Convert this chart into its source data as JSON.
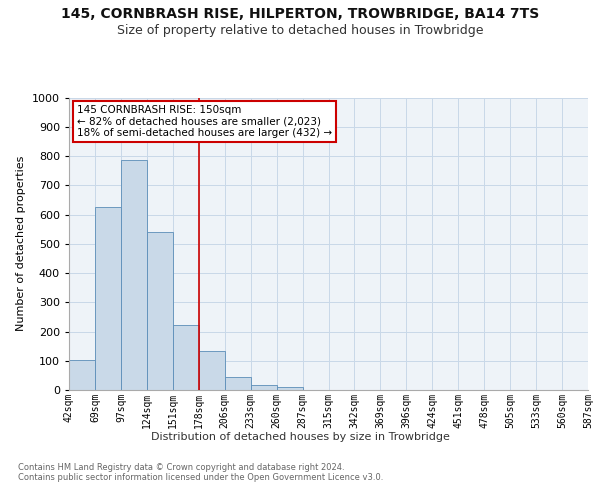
{
  "title": "145, CORNBRASH RISE, HILPERTON, TROWBRIDGE, BA14 7TS",
  "subtitle": "Size of property relative to detached houses in Trowbridge",
  "xlabel": "Distribution of detached houses by size in Trowbridge",
  "ylabel": "Number of detached properties",
  "bin_labels": [
    "42sqm",
    "69sqm",
    "97sqm",
    "124sqm",
    "151sqm",
    "178sqm",
    "206sqm",
    "233sqm",
    "260sqm",
    "287sqm",
    "315sqm",
    "342sqm",
    "369sqm",
    "396sqm",
    "424sqm",
    "451sqm",
    "478sqm",
    "505sqm",
    "533sqm",
    "560sqm",
    "587sqm"
  ],
  "bar_values": [
    103,
    625,
    787,
    541,
    222,
    134,
    43,
    18,
    10,
    0,
    0,
    0,
    0,
    0,
    0,
    0,
    0,
    0,
    0,
    0
  ],
  "bar_color": "#c9d9e8",
  "bar_edge_color": "#5b8db8",
  "vline_x": 4.5,
  "vline_color": "#cc0000",
  "annotation_text": "145 CORNBRASH RISE: 150sqm\n← 82% of detached houses are smaller (2,023)\n18% of semi-detached houses are larger (432) →",
  "annotation_box_color": "#ffffff",
  "annotation_box_edge": "#cc0000",
  "ylim": [
    0,
    1000
  ],
  "yticks": [
    0,
    100,
    200,
    300,
    400,
    500,
    600,
    700,
    800,
    900,
    1000
  ],
  "grid_color": "#c8d8e8",
  "bg_color": "#eef3f8",
  "footer": "Contains HM Land Registry data © Crown copyright and database right 2024.\nContains public sector information licensed under the Open Government Licence v3.0.",
  "title_fontsize": 10,
  "subtitle_fontsize": 9,
  "annotation_fontsize": 7.5,
  "ylabel_fontsize": 8,
  "xlabel_fontsize": 8,
  "footer_fontsize": 6,
  "tick_fontsize": 7
}
